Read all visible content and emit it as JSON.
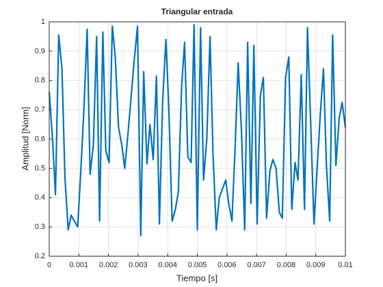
{
  "chart_data": {
    "type": "line",
    "title": "Triangular entrada",
    "x_label": "Tiempo [s]",
    "y_label": "Amplitud [Norm]",
    "x": [
      0,
      0.00011,
      0.00021,
      0.00032,
      0.00043,
      0.00053,
      0.00064,
      0.00074,
      0.00085,
      0.00096,
      0.00106,
      0.00117,
      0.00128,
      0.00138,
      0.00149,
      0.0016,
      0.0017,
      0.00181,
      0.00191,
      0.00202,
      0.00213,
      0.00223,
      0.00234,
      0.00245,
      0.00255,
      0.00266,
      0.00277,
      0.00287,
      0.00298,
      0.00309,
      0.00319,
      0.0033,
      0.0034,
      0.00351,
      0.00362,
      0.00372,
      0.00383,
      0.00394,
      0.00404,
      0.00415,
      0.00426,
      0.00436,
      0.00447,
      0.00457,
      0.00468,
      0.00479,
      0.00489,
      0.005,
      0.00511,
      0.00521,
      0.00532,
      0.00543,
      0.00553,
      0.00564,
      0.00574,
      0.00585,
      0.00596,
      0.00606,
      0.00617,
      0.00628,
      0.00638,
      0.00649,
      0.0066,
      0.0067,
      0.00681,
      0.00691,
      0.00702,
      0.00713,
      0.00723,
      0.00734,
      0.00745,
      0.00755,
      0.00766,
      0.00777,
      0.00787,
      0.00798,
      0.00809,
      0.00819,
      0.0083,
      0.0084,
      0.00851,
      0.00862,
      0.00872,
      0.00883,
      0.00894,
      0.00904,
      0.00915,
      0.00926,
      0.00936,
      0.00947,
      0.00957,
      0.00968,
      0.00979,
      0.00989,
      0.01
    ],
    "series": [
      {
        "color": "#0072bd",
        "values": [
          0.76,
          0.6,
          0.41,
          0.955,
          0.84,
          0.47,
          0.29,
          0.34,
          0.32,
          0.3,
          0.48,
          0.7,
          0.975,
          0.48,
          0.58,
          0.95,
          0.32,
          0.965,
          0.56,
          0.52,
          0.985,
          0.88,
          0.64,
          0.58,
          0.5,
          0.62,
          0.75,
          0.87,
          0.985,
          0.27,
          0.83,
          0.515,
          0.65,
          0.53,
          0.815,
          0.31,
          0.73,
          0.94,
          0.7,
          0.32,
          0.36,
          0.42,
          0.78,
          0.93,
          0.54,
          0.52,
          0.99,
          0.29,
          0.98,
          0.46,
          0.6,
          0.95,
          0.55,
          0.29,
          0.4,
          0.43,
          0.46,
          0.38,
          0.32,
          0.58,
          0.86,
          0.63,
          0.29,
          0.93,
          0.38,
          0.92,
          0.31,
          0.75,
          0.81,
          0.33,
          0.49,
          0.53,
          0.5,
          0.35,
          0.33,
          0.81,
          0.88,
          0.36,
          0.52,
          0.46,
          0.82,
          0.36,
          0.98,
          0.65,
          0.31,
          0.49,
          0.68,
          0.84,
          0.51,
          0.32,
          0.955,
          0.51,
          0.67,
          0.725,
          0.64
        ]
      }
    ],
    "xlim": [
      0,
      0.01
    ],
    "xticks": [
      0,
      0.001,
      0.002,
      0.003,
      0.004,
      0.005,
      0.006,
      0.007,
      0.008,
      0.009,
      0.01
    ],
    "ylim": [
      0.2,
      1
    ],
    "yticks": [
      0.2,
      0.3,
      0.4,
      0.5,
      0.6,
      0.7,
      0.8,
      0.9,
      1
    ],
    "grid": true
  }
}
